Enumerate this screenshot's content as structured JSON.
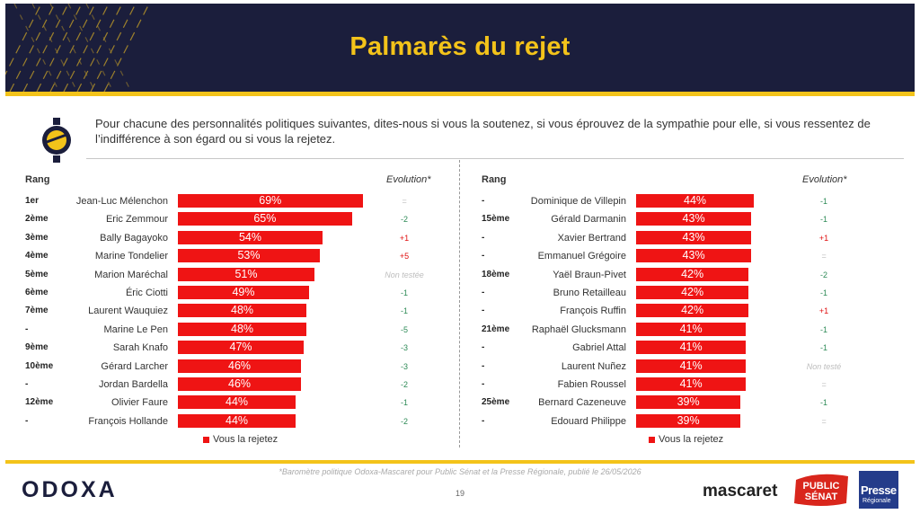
{
  "title": "Palmarès du rejet",
  "question": "Pour chacune des personnalités politiques suivantes, dites-nous si vous la soutenez, si vous éprouvez de la sympathie pour elle, si vous ressentez de l’indifférence à son égard ou si vous la rejetez.",
  "rank_header": "Rang",
  "evolution_header": "Evolution*",
  "legend_label": "Vous la rejetez",
  "footnote": "*Baromètre politique Odoxa-Mascaret pour Public Sénat et la Presse Régionale, publié le 26/05/2026",
  "page_number": "19",
  "logos": {
    "odoxa": "ODOXA",
    "mascaret": "mascaret",
    "public_senat": [
      "PUBLIC",
      "SÉNAT"
    ],
    "presse": [
      "Presse",
      "Régionale"
    ]
  },
  "colors": {
    "bar": "#ef1414",
    "header_bg": "#1b1e3c",
    "accent": "#f3c31a",
    "evo_positive": "#e01010",
    "evo_negative": "#2e8b57"
  },
  "chart_data": [
    {
      "type": "bar",
      "orientation": "horizontal",
      "series": [
        {
          "name": "Vous la rejetez",
          "unit": "%"
        }
      ],
      "xlim": [
        0,
        100
      ],
      "rows": [
        {
          "rank": "1er",
          "name": "Jean-Luc Mélenchon",
          "value": 69,
          "label": "69%",
          "evolution": "=",
          "evo_type": "gray"
        },
        {
          "rank": "2ème",
          "name": "Eric Zemmour",
          "value": 65,
          "label": "65%",
          "evolution": "-2",
          "evo_type": "green"
        },
        {
          "rank": "3ème",
          "name": "Bally Bagayoko",
          "value": 54,
          "label": "54%",
          "evolution": "+1",
          "evo_type": "red"
        },
        {
          "rank": "4ème",
          "name": "Marine Tondelier",
          "value": 53,
          "label": "53%",
          "evolution": "+5",
          "evo_type": "red"
        },
        {
          "rank": "5ème",
          "name": "Marion Maréchal",
          "value": 51,
          "label": "51%",
          "evolution": "Non testée",
          "evo_type": "gray"
        },
        {
          "rank": "6ème",
          "name": "Éric Ciotti",
          "value": 49,
          "label": "49%",
          "evolution": "-1",
          "evo_type": "green"
        },
        {
          "rank": "7ème",
          "name": "Laurent Wauquiez",
          "value": 48,
          "label": "48%",
          "evolution": "-1",
          "evo_type": "green"
        },
        {
          "rank": "-",
          "name": "Marine Le Pen",
          "value": 48,
          "label": "48%",
          "evolution": "-5",
          "evo_type": "green"
        },
        {
          "rank": "9ème",
          "name": "Sarah Knafo",
          "value": 47,
          "label": "47%",
          "evolution": "-3",
          "evo_type": "green"
        },
        {
          "rank": "10ème",
          "name": "Gérard Larcher",
          "value": 46,
          "label": "46%",
          "evolution": "-3",
          "evo_type": "green"
        },
        {
          "rank": "-",
          "name": "Jordan Bardella",
          "value": 46,
          "label": "46%",
          "evolution": "-2",
          "evo_type": "green"
        },
        {
          "rank": "12ème",
          "name": "Olivier Faure",
          "value": 44,
          "label": "44%",
          "evolution": "-1",
          "evo_type": "green"
        },
        {
          "rank": "-",
          "name": "François Hollande",
          "value": 44,
          "label": "44%",
          "evolution": "-2",
          "evo_type": "green"
        }
      ]
    },
    {
      "type": "bar",
      "orientation": "horizontal",
      "series": [
        {
          "name": "Vous la rejetez",
          "unit": "%"
        }
      ],
      "xlim": [
        0,
        100
      ],
      "rows": [
        {
          "rank": "-",
          "name": "Dominique de Villepin",
          "value": 44,
          "label": "44%",
          "evolution": "-1",
          "evo_type": "green"
        },
        {
          "rank": "15ème",
          "name": "Gérald Darmanin",
          "value": 43,
          "label": "43%",
          "evolution": "-1",
          "evo_type": "green"
        },
        {
          "rank": "-",
          "name": "Xavier Bertrand",
          "value": 43,
          "label": "43%",
          "evolution": "+1",
          "evo_type": "red"
        },
        {
          "rank": "-",
          "name": "Emmanuel Grégoire",
          "value": 43,
          "label": "43%",
          "evolution": "=",
          "evo_type": "gray"
        },
        {
          "rank": "18ème",
          "name": "Yaël Braun-Pivet",
          "value": 42,
          "label": "42%",
          "evolution": "-2",
          "evo_type": "green"
        },
        {
          "rank": "-",
          "name": "Bruno Retailleau",
          "value": 42,
          "label": "42%",
          "evolution": "-1",
          "evo_type": "green"
        },
        {
          "rank": "-",
          "name": "François Ruffin",
          "value": 42,
          "label": "42%",
          "evolution": "+1",
          "evo_type": "red"
        },
        {
          "rank": "21ème",
          "name": "Raphaël Glucksmann",
          "value": 41,
          "label": "41%",
          "evolution": "-1",
          "evo_type": "green"
        },
        {
          "rank": "-",
          "name": "Gabriel Attal",
          "value": 41,
          "label": "41%",
          "evolution": "-1",
          "evo_type": "green"
        },
        {
          "rank": "-",
          "name": "Laurent Nuñez",
          "value": 41,
          "label": "41%",
          "evolution": "Non testé",
          "evo_type": "gray"
        },
        {
          "rank": "-",
          "name": "Fabien Roussel",
          "value": 41,
          "label": "41%",
          "evolution": "=",
          "evo_type": "gray"
        },
        {
          "rank": "25ème",
          "name": "Bernard Cazeneuve",
          "value": 39,
          "label": "39%",
          "evolution": "-1",
          "evo_type": "green"
        },
        {
          "rank": "-",
          "name": "Edouard Philippe",
          "value": 39,
          "label": "39%",
          "evolution": "=",
          "evo_type": "gray"
        }
      ]
    }
  ]
}
